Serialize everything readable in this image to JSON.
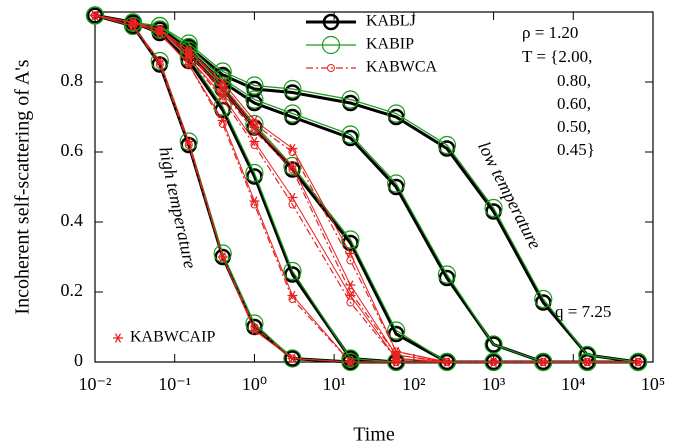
{
  "chart_data": {
    "type": "line",
    "x_label": "Time",
    "y_label": "Incoherent self-scattering of A's",
    "x_scale": "log",
    "xlim": [
      0.01,
      100000
    ],
    "ylim": [
      0,
      1
    ],
    "xticks": [
      {
        "value": 0.01,
        "label": "10⁻²"
      },
      {
        "value": 0.1,
        "label": "10⁻¹"
      },
      {
        "value": 1,
        "label": "10⁰"
      },
      {
        "value": 10,
        "label": "10¹"
      },
      {
        "value": 100,
        "label": "10²"
      },
      {
        "value": 1000,
        "label": "10³"
      },
      {
        "value": 10000,
        "label": "10⁴"
      },
      {
        "value": 100000,
        "label": "10⁵"
      }
    ],
    "yticks": [
      0,
      0.2,
      0.4,
      0.6,
      0.8
    ],
    "annotations": [
      "ρ = 1.20",
      "T = {2.00,",
      "0.80,",
      "0.60,",
      "0.50,",
      "0.45}",
      "q = 7.25",
      "high temperature",
      "low temperature"
    ],
    "x": [
      0.01,
      0.03,
      0.065,
      0.15,
      0.4,
      1,
      3,
      16,
      60,
      260,
      1000,
      4200,
      15000,
      65000
    ],
    "series": [
      {
        "name": "KABLJ",
        "color": "#000000",
        "line_width": 3,
        "dash": "solid",
        "marker": "circle",
        "legend_loc": "top",
        "values": [
          [
            0.99,
            0.96,
            0.85,
            0.62,
            0.3,
            0.1,
            0.01,
            0,
            0,
            0,
            0,
            0,
            0,
            0
          ],
          [
            0.99,
            0.97,
            0.94,
            0.86,
            0.72,
            0.53,
            0.25,
            0.01,
            0,
            0,
            0,
            0,
            0,
            0
          ],
          [
            0.99,
            0.97,
            0.95,
            0.88,
            0.78,
            0.67,
            0.55,
            0.34,
            0.08,
            0,
            0,
            0,
            0,
            0
          ],
          [
            0.99,
            0.97,
            0.95,
            0.89,
            0.8,
            0.74,
            0.7,
            0.64,
            0.5,
            0.24,
            0.05,
            0,
            0,
            0
          ],
          [
            0.99,
            0.97,
            0.95,
            0.9,
            0.82,
            0.78,
            0.77,
            0.74,
            0.7,
            0.61,
            0.43,
            0.17,
            0.02,
            0
          ]
        ]
      },
      {
        "name": "KABIP",
        "color": "#1a9a1a",
        "line_width": 1.2,
        "dash": "solid",
        "marker": "circle",
        "legend_loc": "top",
        "values": [
          [
            0.99,
            0.96,
            0.86,
            0.63,
            0.31,
            0.11,
            0.01,
            0,
            0,
            0,
            0,
            0,
            0,
            0
          ],
          [
            0.99,
            0.97,
            0.95,
            0.87,
            0.73,
            0.54,
            0.26,
            0.01,
            0,
            0,
            0,
            0,
            0,
            0
          ],
          [
            0.99,
            0.97,
            0.95,
            0.89,
            0.79,
            0.68,
            0.56,
            0.35,
            0.09,
            0,
            0,
            0,
            0,
            0
          ],
          [
            0.99,
            0.97,
            0.96,
            0.9,
            0.81,
            0.75,
            0.71,
            0.65,
            0.51,
            0.25,
            0.05,
            0,
            0,
            0
          ],
          [
            0.99,
            0.97,
            0.96,
            0.91,
            0.83,
            0.79,
            0.78,
            0.75,
            0.71,
            0.62,
            0.44,
            0.18,
            0.02,
            0
          ]
        ]
      },
      {
        "name": "KABWCA",
        "color": "#e8201e",
        "line_width": 1.2,
        "dash": "dashdot",
        "marker": "small-circle",
        "legend_loc": "top",
        "values": [
          [
            0.99,
            0.96,
            0.85,
            0.62,
            0.3,
            0.1,
            0.01,
            0,
            0,
            0,
            0,
            0,
            0,
            0
          ],
          [
            0.99,
            0.97,
            0.94,
            0.85,
            0.68,
            0.45,
            0.18,
            0,
            0,
            0,
            0,
            0,
            0,
            0
          ],
          [
            0.99,
            0.97,
            0.95,
            0.87,
            0.75,
            0.62,
            0.45,
            0.17,
            0.01,
            0,
            0,
            0,
            0,
            0
          ],
          [
            0.99,
            0.97,
            0.95,
            0.88,
            0.77,
            0.66,
            0.55,
            0.2,
            0.02,
            0,
            0,
            0,
            0,
            0
          ],
          [
            0.99,
            0.97,
            0.95,
            0.89,
            0.79,
            0.68,
            0.6,
            0.29,
            0.03,
            0,
            0,
            0,
            0,
            0
          ]
        ]
      },
      {
        "name": "KABWCAIP",
        "color": "#e8201e",
        "line_width": 1,
        "dash": "solid",
        "marker": "star",
        "legend_loc": "bottom-left",
        "values": [
          [
            0.99,
            0.96,
            0.86,
            0.63,
            0.3,
            0.09,
            0.01,
            0,
            0,
            0,
            0,
            0,
            0,
            0
          ],
          [
            0.99,
            0.97,
            0.94,
            0.85,
            0.69,
            0.46,
            0.19,
            0,
            0,
            0,
            0,
            0,
            0,
            0
          ],
          [
            0.99,
            0.97,
            0.95,
            0.87,
            0.76,
            0.63,
            0.47,
            0.19,
            0.01,
            0,
            0,
            0,
            0,
            0
          ],
          [
            0.99,
            0.97,
            0.95,
            0.88,
            0.78,
            0.67,
            0.56,
            0.22,
            0.02,
            0,
            0,
            0,
            0,
            0
          ],
          [
            0.99,
            0.97,
            0.95,
            0.89,
            0.8,
            0.69,
            0.61,
            0.31,
            0.03,
            0,
            0,
            0,
            0,
            0
          ]
        ]
      }
    ]
  }
}
